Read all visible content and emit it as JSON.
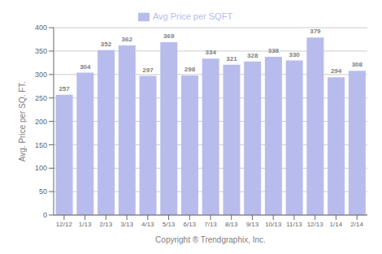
{
  "chart_data": {
    "type": "bar",
    "xlabel": "Copyright ® Trendgraphix, Inc.",
    "ylabel": "Avg. Price per SQ. FT.",
    "categories": [
      "12/12",
      "1/13",
      "2/13",
      "3/13",
      "4/13",
      "5/13",
      "6/13",
      "7/13",
      "8/13",
      "9/13",
      "10/13",
      "11/13",
      "12/13",
      "1/14",
      "2/14"
    ],
    "series": [
      {
        "name": "Avg Price per SQFT",
        "color": "#b8bcec",
        "values": [
          257,
          304,
          352,
          362,
          297,
          369,
          298,
          334,
          321,
          328,
          338,
          330,
          379,
          294,
          308
        ]
      }
    ],
    "ylim": [
      0,
      400
    ],
    "yticks": [
      0,
      50,
      100,
      150,
      200,
      250,
      300,
      350,
      400
    ],
    "grid": true,
    "legend": "top",
    "data_labels": true
  }
}
